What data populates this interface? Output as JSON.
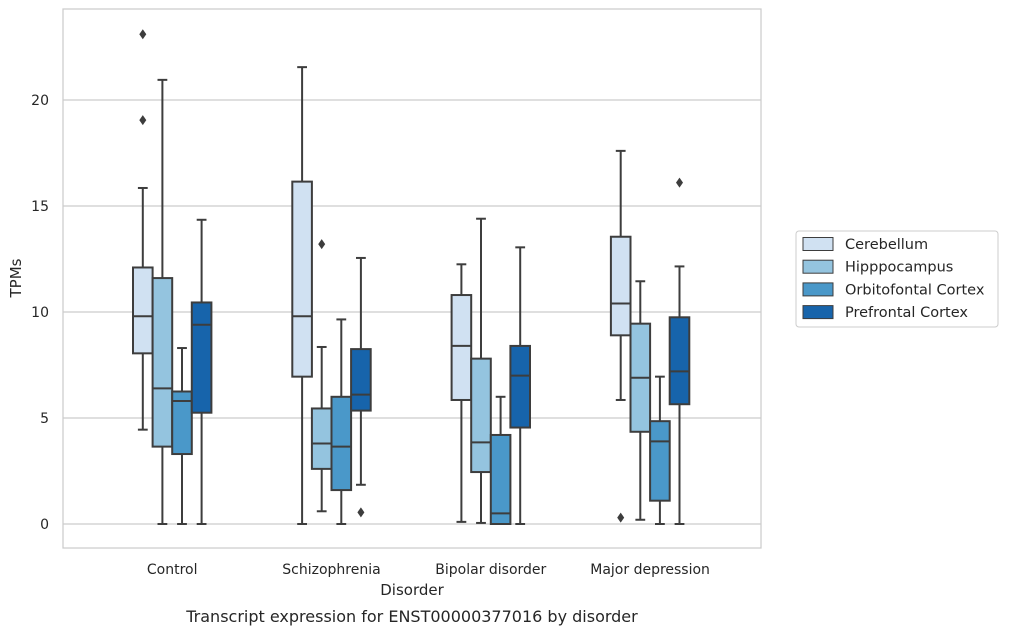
{
  "chart_data": {
    "type": "box",
    "xlabel": "Disorder",
    "ylabel": "TPMs",
    "caption": "Transcript expression for ENST00000377016 by disorder",
    "ylim": [
      -1.1,
      24.4
    ],
    "yticks": [
      0,
      5,
      10,
      15,
      20
    ],
    "grid": "horizontal",
    "legend_position": "right",
    "categories": [
      "Control",
      "Schizophrenia",
      "Bipolar disorder",
      "Major depression"
    ],
    "series": [
      {
        "name": "Cerebellum",
        "color": "#d0e1f2",
        "boxes": [
          {
            "whislo": 4.45,
            "q1": 8.05,
            "med": 9.8,
            "q3": 12.1,
            "whishi": 15.85,
            "fliers": [
              19.05,
              23.1
            ]
          },
          {
            "whislo": 0.0,
            "q1": 6.95,
            "med": 9.8,
            "q3": 16.15,
            "whishi": 21.55,
            "fliers": []
          },
          {
            "whislo": 0.1,
            "q1": 5.85,
            "med": 8.4,
            "q3": 10.8,
            "whishi": 12.25,
            "fliers": []
          },
          {
            "whislo": 5.85,
            "q1": 8.9,
            "med": 10.4,
            "q3": 13.55,
            "whishi": 17.6,
            "fliers": [
              0.3
            ]
          }
        ]
      },
      {
        "name": "Hipppocampus",
        "color": "#94c4df",
        "boxes": [
          {
            "whislo": 0.0,
            "q1": 3.65,
            "med": 6.4,
            "q3": 11.6,
            "whishi": 20.95,
            "fliers": []
          },
          {
            "whislo": 0.6,
            "q1": 2.6,
            "med": 3.8,
            "q3": 5.45,
            "whishi": 8.35,
            "fliers": [
              13.2
            ]
          },
          {
            "whislo": 0.05,
            "q1": 2.45,
            "med": 3.85,
            "q3": 7.8,
            "whishi": 14.4,
            "fliers": []
          },
          {
            "whislo": 0.2,
            "q1": 4.35,
            "med": 6.9,
            "q3": 9.45,
            "whishi": 11.45,
            "fliers": []
          }
        ]
      },
      {
        "name": "Orbitofontal Cortex",
        "color": "#4a98c9",
        "boxes": [
          {
            "whislo": 0.0,
            "q1": 3.3,
            "med": 5.8,
            "q3": 6.25,
            "whishi": 8.3,
            "fliers": []
          },
          {
            "whislo": 0.0,
            "q1": 1.6,
            "med": 3.65,
            "q3": 6.0,
            "whishi": 9.65,
            "fliers": []
          },
          {
            "whislo": 0.0,
            "q1": 0.0,
            "med": 0.5,
            "q3": 4.2,
            "whishi": 6.0,
            "fliers": []
          },
          {
            "whislo": 0.0,
            "q1": 1.1,
            "med": 3.9,
            "q3": 4.85,
            "whishi": 6.95,
            "fliers": []
          }
        ]
      },
      {
        "name": "Prefrontal Cortex",
        "color": "#1764ab",
        "boxes": [
          {
            "whislo": 0.0,
            "q1": 5.25,
            "med": 9.4,
            "q3": 10.45,
            "whishi": 14.35,
            "fliers": []
          },
          {
            "whislo": 1.85,
            "q1": 5.35,
            "med": 6.1,
            "q3": 8.25,
            "whishi": 12.55,
            "fliers": [
              0.55
            ]
          },
          {
            "whislo": 0.0,
            "q1": 4.55,
            "med": 7.0,
            "q3": 8.4,
            "whishi": 13.05,
            "fliers": []
          },
          {
            "whislo": 0.0,
            "q1": 5.65,
            "med": 7.2,
            "q3": 9.75,
            "whishi": 12.15,
            "fliers": [
              16.1
            ]
          }
        ]
      }
    ]
  }
}
